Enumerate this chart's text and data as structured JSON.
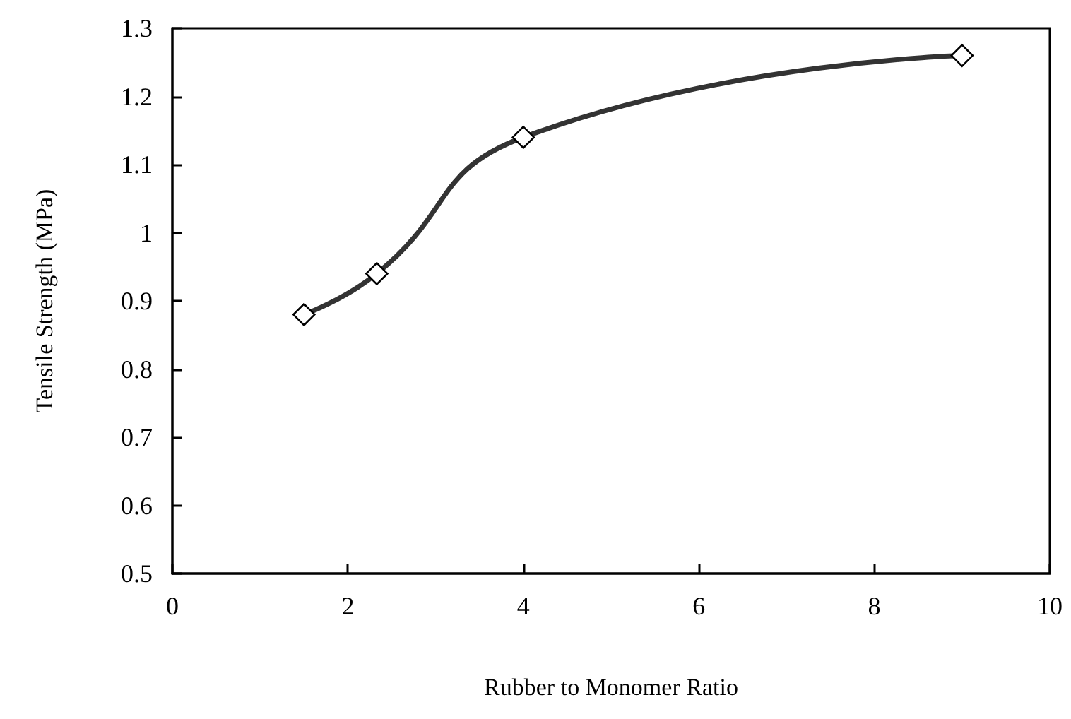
{
  "chart_data": {
    "type": "line",
    "xlabel": "Rubber to Monomer Ratio",
    "ylabel": "Tensile Strength (MPa)",
    "x": [
      1.5,
      2.33,
      4,
      9
    ],
    "series": [
      {
        "color": "#333333",
        "values": [
          0.88,
          0.94,
          1.14,
          1.26
        ]
      }
    ],
    "xlim": [
      0,
      10
    ],
    "xticks": [
      0,
      2,
      4,
      6,
      8,
      10
    ],
    "ylim": [
      0.5,
      1.3
    ],
    "yticks": [
      0.5,
      0.6,
      0.7,
      0.8,
      0.9,
      1,
      1.1,
      1.2,
      1.3
    ],
    "marker": "diamond",
    "line_style": "solid"
  }
}
